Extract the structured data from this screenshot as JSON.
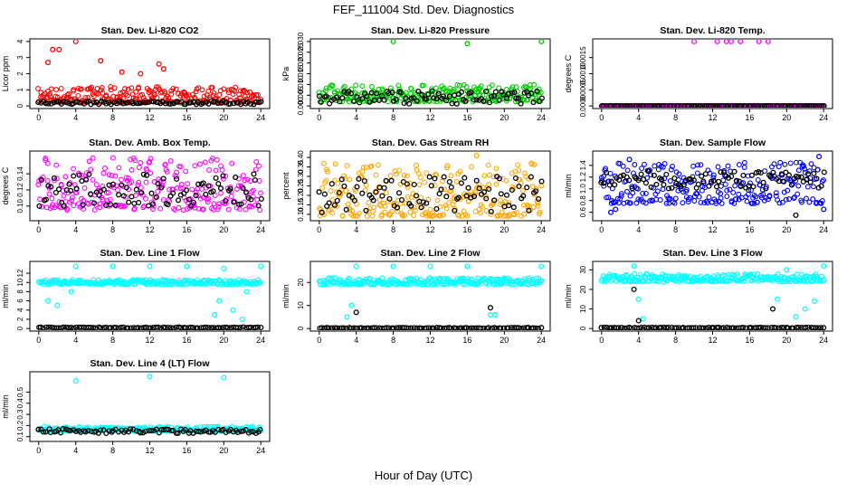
{
  "page": {
    "title": "FEF_111004  Std. Dev. Diagnostics",
    "xlabel": "Hour of Day (UTC)"
  },
  "series_colors": {
    "black": "#000000",
    "co2": "#ff0000",
    "pressure": "#00cc00",
    "temp": "#ff00ff",
    "rh": "#ffa500",
    "flow": "#0000ff",
    "line": "#00ffff"
  },
  "chart_data": [
    {
      "type": "scatter",
      "title": "Stan. Dev. Li-820 CO2",
      "ylabel": "Licor ppm",
      "xlim": [
        0,
        24
      ],
      "xticks": [
        "0",
        "4",
        "8",
        "12",
        "16",
        "20",
        "24"
      ],
      "ylim": [
        0,
        4
      ],
      "yticks": [
        "0",
        "1",
        "2",
        "3",
        "4"
      ],
      "series": [
        {
          "color": "#ff0000",
          "band": [
            0.2,
            1.2
          ],
          "outliers": [
            [
              1.5,
              3.5
            ],
            [
              2.2,
              3.5
            ],
            [
              4,
              4
            ],
            [
              1,
              2.7
            ],
            [
              6.7,
              2.8
            ],
            [
              13,
              2.6
            ],
            [
              13.5,
              2.3
            ],
            [
              9,
              2.1
            ],
            [
              11,
              2.0
            ]
          ]
        },
        {
          "color": "#000000",
          "band": [
            0.1,
            0.3
          ],
          "outliers": []
        }
      ]
    },
    {
      "type": "scatter",
      "title": "Stan. Dev. Li-820 Pressure",
      "ylabel": "kPa",
      "xlim": [
        0,
        24
      ],
      "xticks": [
        "0",
        "4",
        "8",
        "12",
        "16",
        "20",
        "24"
      ],
      "ylim": [
        0,
        0.03
      ],
      "yticks": [
        "0.000",
        "0.005",
        "0.010",
        "0.015",
        "0.020",
        "0.025",
        "0.030"
      ],
      "series": [
        {
          "color": "#00cc00",
          "band": [
            0.002,
            0.01
          ],
          "outliers": [
            [
              8,
              0.03
            ],
            [
              16,
              0.029
            ],
            [
              24,
              0.03
            ]
          ]
        },
        {
          "color": "#000000",
          "band": [
            0.001,
            0.007
          ],
          "outliers": []
        }
      ]
    },
    {
      "type": "scatter",
      "title": "Stan. Dev. Li-820 Temp.",
      "ylabel": "degrees C",
      "xlim": [
        0,
        24
      ],
      "xticks": [
        "0",
        "4",
        "8",
        "12",
        "16",
        "20",
        "24"
      ],
      "ylim": [
        0,
        0.002
      ],
      "yticks": [
        "0.0000",
        "0.0005",
        "0.0010",
        "0.0015"
      ],
      "series": [
        {
          "color": "#ff00ff",
          "band": [
            0,
            0
          ],
          "outliers": [
            [
              10,
              0.002
            ],
            [
              12.5,
              0.002
            ],
            [
              13.5,
              0.002
            ],
            [
              14,
              0.002
            ],
            [
              15,
              0.002
            ],
            [
              17,
              0.002
            ],
            [
              18,
              0.002
            ]
          ]
        },
        {
          "color": "#000000",
          "band": [
            0,
            0
          ],
          "outliers": []
        }
      ]
    },
    {
      "type": "scatter",
      "title": "Stan. Dev. Amb. Box Temp.",
      "ylabel": "degrees C",
      "xlim": [
        0,
        24
      ],
      "xticks": [
        "0",
        "4",
        "8",
        "12",
        "16",
        "20",
        "24"
      ],
      "ylim": [
        0.085,
        0.165
      ],
      "yticks": [
        "0.10",
        "0.12",
        "0.14"
      ],
      "series": [
        {
          "color": "#ff00ff",
          "band": [
            0.095,
            0.16
          ],
          "outliers": []
        },
        {
          "color": "#000000",
          "band": [
            0.1,
            0.14
          ],
          "outliers": []
        }
      ]
    },
    {
      "type": "scatter",
      "title": "Stan. Dev. Gas Stream RH",
      "ylabel": "percent",
      "xlim": [
        0,
        24
      ],
      "xticks": [
        "0",
        "4",
        "8",
        "12",
        "16",
        "20",
        "24"
      ],
      "ylim": [
        0.08,
        0.42
      ],
      "yticks": [
        "0.10",
        "0.15",
        "0.20",
        "0.25",
        "0.30",
        "0.35",
        "0.40"
      ],
      "series": [
        {
          "color": "#ffa500",
          "band": [
            0.09,
            0.37
          ],
          "outliers": [
            [
              17,
              0.41
            ]
          ]
        },
        {
          "color": "#000000",
          "band": [
            0.11,
            0.3
          ],
          "outliers": []
        }
      ]
    },
    {
      "type": "scatter",
      "title": "Stan. Dev. Sample Flow",
      "ylabel": "ml/min",
      "xlim": [
        0,
        24
      ],
      "xticks": [
        "0",
        "4",
        "8",
        "12",
        "16",
        "20",
        "24"
      ],
      "ylim": [
        0.5,
        1.6
      ],
      "yticks": [
        "0.6",
        "0.8",
        "1.0",
        "1.2",
        "1.4"
      ],
      "series": [
        {
          "color": "#0000ff",
          "band": [
            0.75,
            1.45
          ],
          "outliers": [
            [
              1,
              0.6
            ],
            [
              1.5,
              0.65
            ],
            [
              3,
              1.5
            ],
            [
              23.5,
              1.55
            ],
            [
              24,
              0.65
            ]
          ]
        },
        {
          "color": "#000000",
          "band": [
            1.0,
            1.3
          ],
          "outliers": [
            [
              21,
              0.55
            ]
          ]
        }
      ]
    },
    {
      "type": "scatter",
      "title": "Stan. Dev. Line 1 Flow",
      "ylabel": "ml/min",
      "xlim": [
        0,
        24
      ],
      "xticks": [
        "0",
        "4",
        "8",
        "12",
        "16",
        "20",
        "24"
      ],
      "ylim": [
        0,
        14
      ],
      "yticks": [
        "0",
        "2",
        "4",
        "6",
        "8",
        "10",
        "12"
      ],
      "series": [
        {
          "color": "#00ffff",
          "band": [
            9.6,
            10.6
          ],
          "outliers": [
            [
              1,
              6
            ],
            [
              2,
              5
            ],
            [
              3.5,
              8
            ],
            [
              4,
              13.5
            ],
            [
              8,
              13.5
            ],
            [
              12,
              13.5
            ],
            [
              16,
              13.5
            ],
            [
              19,
              3
            ],
            [
              19.5,
              6
            ],
            [
              20,
              13
            ],
            [
              21,
              4
            ],
            [
              22,
              2
            ],
            [
              22.5,
              8
            ],
            [
              24,
              13.5
            ]
          ]
        },
        {
          "color": "#000000",
          "band": [
            0.1,
            0.3
          ],
          "outliers": []
        }
      ]
    },
    {
      "type": "scatter",
      "title": "Stan. Dev. Line 2 Flow",
      "ylabel": "ml/min",
      "xlim": [
        0,
        24
      ],
      "xticks": [
        "0",
        "4",
        "8",
        "12",
        "16",
        "20",
        "24"
      ],
      "ylim": [
        0,
        28
      ],
      "yticks": [
        "0",
        "10",
        "20"
      ],
      "series": [
        {
          "color": "#00ffff",
          "band": [
            19,
            22
          ],
          "outliers": [
            [
              3,
              5
            ],
            [
              3.5,
              10
            ],
            [
              4,
              27
            ],
            [
              8,
              27
            ],
            [
              12,
              27
            ],
            [
              16,
              27
            ],
            [
              18.5,
              6
            ],
            [
              19,
              6
            ],
            [
              24,
              27
            ]
          ]
        },
        {
          "color": "#000000",
          "band": [
            0.1,
            0.4
          ],
          "outliers": [
            [
              4,
              7
            ],
            [
              18.5,
              9
            ]
          ]
        }
      ]
    },
    {
      "type": "scatter",
      "title": "Stan. Dev. Line 3 Flow",
      "ylabel": "ml/min",
      "xlim": [
        0,
        24
      ],
      "xticks": [
        "0",
        "4",
        "8",
        "12",
        "16",
        "20",
        "24"
      ],
      "ylim": [
        0,
        33
      ],
      "yticks": [
        "0",
        "10",
        "20",
        "30"
      ],
      "series": [
        {
          "color": "#00ffff",
          "band": [
            24,
            28
          ],
          "outliers": [
            [
              3.5,
              32
            ],
            [
              4,
              15
            ],
            [
              4.5,
              5
            ],
            [
              18.5,
              10
            ],
            [
              19,
              15
            ],
            [
              20,
              30
            ],
            [
              21,
              6
            ],
            [
              22,
              10
            ],
            [
              23,
              14
            ],
            [
              24,
              32
            ]
          ]
        },
        {
          "color": "#000000",
          "band": [
            0.2,
            0.6
          ],
          "outliers": [
            [
              3.5,
              20
            ],
            [
              4,
              4
            ],
            [
              18.5,
              10
            ]
          ]
        }
      ]
    },
    {
      "type": "scatter",
      "title": "Stan. Dev. Line 4 (LT) Flow",
      "ylabel": "ml/min",
      "xlim": [
        0,
        24
      ],
      "xticks": [
        "0",
        "4",
        "8",
        "12",
        "16",
        "20",
        "24"
      ],
      "ylim": [
        0.08,
        0.66
      ],
      "yticks": [
        "0.1",
        "0.2",
        "0.3",
        "0.4",
        "0.5"
      ],
      "series": [
        {
          "color": "#00ffff",
          "band": [
            0.15,
            0.19
          ],
          "outliers": [
            [
              4,
              0.6
            ],
            [
              12,
              0.64
            ],
            [
              20,
              0.63
            ]
          ]
        },
        {
          "color": "#000000",
          "band": [
            0.13,
            0.17
          ],
          "outliers": []
        }
      ]
    }
  ]
}
